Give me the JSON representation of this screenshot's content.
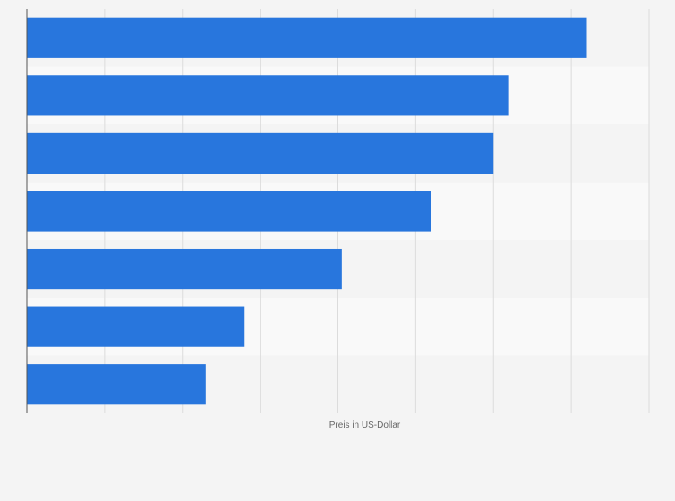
{
  "chart_data": {
    "type": "bar",
    "orientation": "horizontal",
    "categories": [
      "",
      "",
      "",
      "",
      "",
      "",
      ""
    ],
    "values": [
      72,
      62,
      60,
      52,
      40.5,
      28,
      23
    ],
    "xlabel": "Preis in US-Dollar",
    "ylabel": "",
    "xlim": [
      0,
      80
    ],
    "grid": true,
    "colors": {
      "bar": "#2876dd",
      "page_bg": "#f4f4f4",
      "band_odd": "#f4f4f4",
      "band_even": "#f9f9f9",
      "grid": "#dcdcdc",
      "axis": "#555555",
      "label": "#666666"
    }
  }
}
